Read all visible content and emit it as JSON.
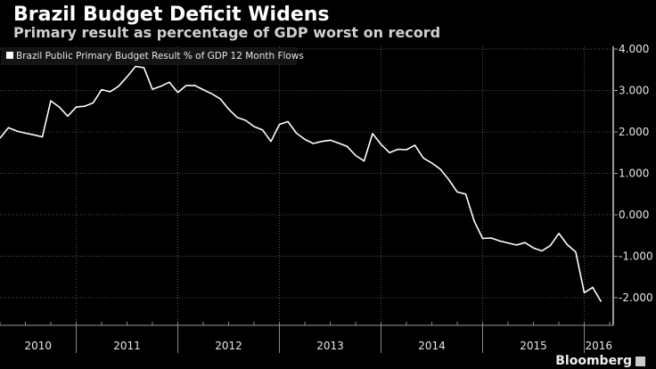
{
  "header": {
    "title": "Brazil Budget Deficit Widens",
    "subtitle": "Primary result as percentage of GDP worst on record"
  },
  "footer": {
    "brand": "Bloomberg"
  },
  "chart_data": {
    "type": "line",
    "title": "Brazil Budget Deficit Widens",
    "subtitle": "Primary result as percentage of GDP worst on record",
    "xlabel": "",
    "ylabel": "",
    "ylim": [
      -2.3,
      4.1
    ],
    "y_ticks": [
      -2,
      -1,
      0,
      1,
      2,
      3,
      4
    ],
    "y_tick_labels": [
      "-2.000",
      "-1.000",
      "0.000",
      "1.000",
      "2.000",
      "3.000",
      "4.000"
    ],
    "y_axis_side": "right",
    "x_year_labels": [
      "2010",
      "2011",
      "2012",
      "2013",
      "2014",
      "2015",
      "2016"
    ],
    "x_start": "2010-04",
    "grid": true,
    "legend_position": "top-left",
    "colors": {
      "line": "#ffffff",
      "background": "#000000",
      "grid": "#555555"
    },
    "series": [
      {
        "name": "Brazil Public Primary Budget Result % of GDP 12 Month Flows",
        "values": [
          1.85,
          2.1,
          2.02,
          1.97,
          1.93,
          1.88,
          2.75,
          2.6,
          2.38,
          2.6,
          2.62,
          2.7,
          3.02,
          2.97,
          3.1,
          3.33,
          3.58,
          3.55,
          3.03,
          3.1,
          3.2,
          2.95,
          3.12,
          3.12,
          3.02,
          2.92,
          2.8,
          2.55,
          2.35,
          2.28,
          2.13,
          2.05,
          1.77,
          2.18,
          2.25,
          1.97,
          1.82,
          1.72,
          1.77,
          1.8,
          1.73,
          1.65,
          1.43,
          1.3,
          1.96,
          1.7,
          1.5,
          1.58,
          1.57,
          1.68,
          1.37,
          1.25,
          1.1,
          0.85,
          0.55,
          0.5,
          -0.15,
          -0.57,
          -0.56,
          -0.63,
          -0.68,
          -0.73,
          -0.67,
          -0.8,
          -0.87,
          -0.74,
          -0.45,
          -0.72,
          -0.9,
          -1.88,
          -1.75,
          -2.1
        ]
      }
    ]
  }
}
